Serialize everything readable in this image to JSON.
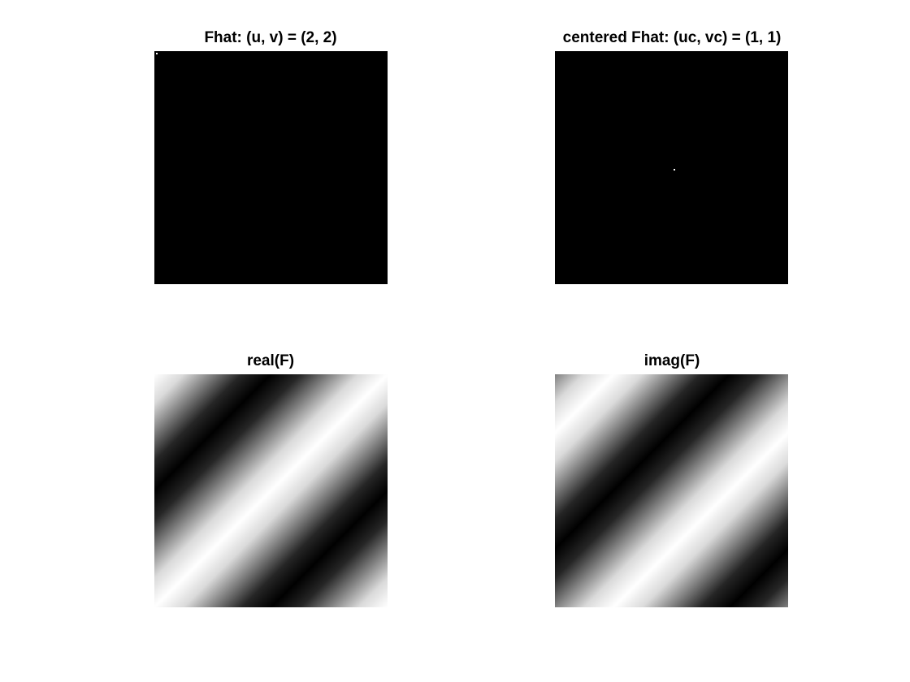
{
  "figure": {
    "panels": [
      {
        "key": "fhat",
        "title": "Fhat: (u, v) = (2, 2)",
        "content": "single-bright-pixel",
        "peak": {
          "row": 2,
          "col": 2
        },
        "colormap": "gray"
      },
      {
        "key": "fhat_centered",
        "title": "centered Fhat: (uc, vc) = (1, 1)",
        "content": "single-bright-pixel",
        "colormap": "gray"
      },
      {
        "key": "real_f",
        "title": "real(F)",
        "content": "diagonal-cosine-stripes",
        "colormap": "gray"
      },
      {
        "key": "imag_f",
        "title": "imag(F)",
        "content": "diagonal-sine-stripes",
        "colormap": "gray"
      }
    ]
  }
}
